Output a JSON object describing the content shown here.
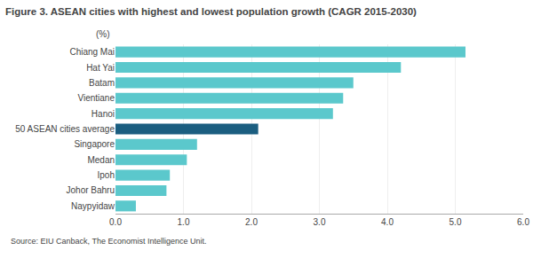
{
  "chart_data": {
    "type": "bar",
    "orientation": "horizontal",
    "title": "Figure 3. ASEAN cities with highest and lowest population growth (CAGR 2015-2030)",
    "subtitle": "(%)",
    "annotations": [
      "Source: EIU Canback, The Economist Intelligence Unit."
    ],
    "categories": [
      "Naypyidaw",
      "Johor Bahru",
      "Ipoh",
      "Medan",
      "Singapore",
      "50 ASEAN cities average",
      "Hanoi",
      "Vientiane",
      "Batam",
      "Hat Yai",
      "Chiang Mai"
    ],
    "values": [
      0.3,
      0.75,
      0.8,
      1.05,
      1.2,
      2.1,
      3.2,
      3.35,
      3.5,
      4.2,
      5.15
    ],
    "colors": [
      "#5bc8cc",
      "#5bc8cc",
      "#5bc8cc",
      "#5bc8cc",
      "#5bc8cc",
      "#1b5e80",
      "#5bc8cc",
      "#5bc8cc",
      "#5bc8cc",
      "#5bc8cc",
      "#5bc8cc"
    ],
    "xlim": [
      0,
      6.0
    ],
    "xticks": [
      {
        "value": 0.0,
        "label": "0.0"
      },
      {
        "value": 1.0,
        "label": "1.0"
      },
      {
        "value": 2.0,
        "label": "2.0"
      },
      {
        "value": 3.0,
        "label": "3.0"
      },
      {
        "value": 4.0,
        "label": "4.0"
      },
      {
        "value": 5.0,
        "label": "5.0"
      },
      {
        "value": 6.0,
        "label": "6.0"
      }
    ],
    "grid": true
  }
}
